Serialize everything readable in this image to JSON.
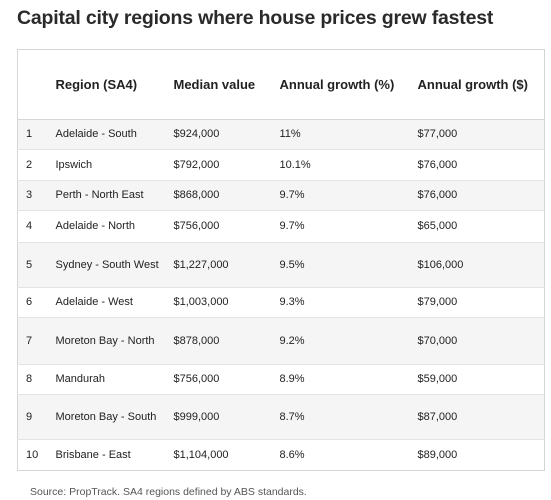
{
  "title": "Capital city regions where house prices grew fastest",
  "table": {
    "headers": {
      "rank": "",
      "region": "Region (SA4)",
      "median": "Median value",
      "growth_pct": "Annual growth (%)",
      "growth_dollar": "Annual growth ($)"
    },
    "rows": [
      {
        "rank": "1",
        "region": "Adelaide - South",
        "median": "$924,000",
        "growth_pct": "11%",
        "growth_dollar": "$77,000"
      },
      {
        "rank": "2",
        "region": "Ipswich",
        "median": "$792,000",
        "growth_pct": "10.1%",
        "growth_dollar": "$76,000"
      },
      {
        "rank": "3",
        "region": "Perth - North East",
        "median": "$868,000",
        "growth_pct": "9.7%",
        "growth_dollar": "$76,000"
      },
      {
        "rank": "4",
        "region": "Adelaide - North",
        "median": "$756,000",
        "growth_pct": "9.7%",
        "growth_dollar": "$65,000"
      },
      {
        "rank": "5",
        "region": "Sydney - South West",
        "median": "$1,227,000",
        "growth_pct": "9.5%",
        "growth_dollar": "$106,000"
      },
      {
        "rank": "6",
        "region": "Adelaide - West",
        "median": "$1,003,000",
        "growth_pct": "9.3%",
        "growth_dollar": "$79,000"
      },
      {
        "rank": "7",
        "region": "Moreton Bay - North",
        "median": "$878,000",
        "growth_pct": "9.2%",
        "growth_dollar": "$70,000"
      },
      {
        "rank": "8",
        "region": "Mandurah",
        "median": "$756,000",
        "growth_pct": "8.9%",
        "growth_dollar": "$59,000"
      },
      {
        "rank": "9",
        "region": "Moreton Bay - South",
        "median": "$999,000",
        "growth_pct": "8.7%",
        "growth_dollar": "$87,000"
      },
      {
        "rank": "10",
        "region": "Brisbane - East",
        "median": "$1,104,000",
        "growth_pct": "8.6%",
        "growth_dollar": "$89,000"
      }
    ]
  },
  "source": "Source: PropTrack. SA4 regions defined by ABS standards."
}
